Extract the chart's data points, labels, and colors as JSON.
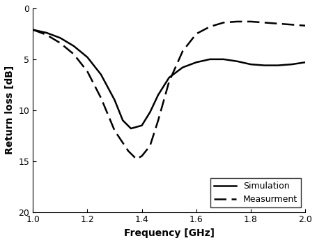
{
  "title": "",
  "xlabel": "Frequency [GHz]",
  "ylabel": "Return loss [dB]",
  "xlim": [
    1.0,
    2.0
  ],
  "ylim": [
    20,
    0
  ],
  "xticks": [
    1.0,
    1.2,
    1.4,
    1.6,
    1.8,
    2.0
  ],
  "yticks": [
    0,
    5,
    10,
    15,
    20
  ],
  "simulation": {
    "freq": [
      1.0,
      1.05,
      1.1,
      1.15,
      1.2,
      1.25,
      1.3,
      1.33,
      1.36,
      1.4,
      1.43,
      1.46,
      1.5,
      1.55,
      1.6,
      1.65,
      1.7,
      1.75,
      1.8,
      1.85,
      1.9,
      1.95,
      2.0
    ],
    "loss": [
      2.1,
      2.4,
      2.9,
      3.7,
      4.8,
      6.5,
      9.0,
      11.0,
      11.8,
      11.5,
      10.2,
      8.5,
      6.8,
      5.8,
      5.3,
      5.0,
      5.0,
      5.2,
      5.5,
      5.6,
      5.6,
      5.5,
      5.3
    ],
    "label": "Simulation",
    "linestyle": "-",
    "linewidth": 1.8,
    "color": "#000000"
  },
  "measurement": {
    "freq": [
      1.0,
      1.05,
      1.1,
      1.15,
      1.2,
      1.25,
      1.3,
      1.35,
      1.38,
      1.4,
      1.43,
      1.46,
      1.5,
      1.55,
      1.6,
      1.65,
      1.7,
      1.75,
      1.8,
      1.85,
      1.9,
      1.95,
      2.0
    ],
    "loss": [
      2.1,
      2.6,
      3.4,
      4.5,
      6.2,
      8.8,
      12.0,
      14.0,
      14.8,
      14.5,
      13.5,
      11.0,
      7.2,
      4.2,
      2.5,
      1.8,
      1.4,
      1.3,
      1.3,
      1.4,
      1.5,
      1.6,
      1.7
    ],
    "label": "Measurment",
    "linestyle": "--",
    "linewidth": 1.8,
    "color": "#000000",
    "dashes": [
      7,
      3
    ]
  },
  "legend_loc": "lower right",
  "legend_fontsize": 9,
  "axis_label_fontsize": 10,
  "tick_fontsize": 9,
  "background_color": "#ffffff"
}
